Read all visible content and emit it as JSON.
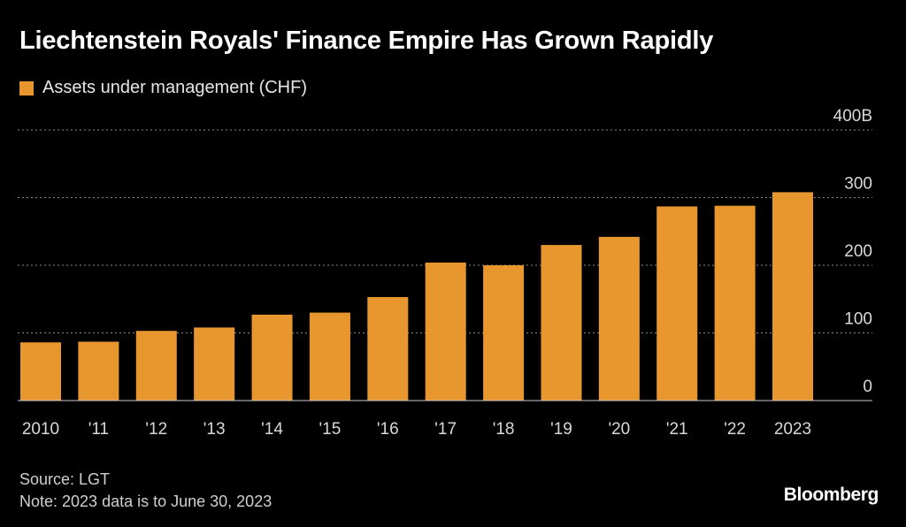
{
  "title": "Liechtenstein Royals' Finance Empire Has Grown Rapidly",
  "colors": {
    "bar": "#e8962e",
    "grid": "#8a8a8a",
    "axis": "#cccccc",
    "background": "#000000"
  },
  "chart_data": {
    "type": "bar",
    "categories": [
      "2010",
      "'11",
      "'12",
      "'13",
      "'14",
      "'15",
      "'16",
      "'17",
      "'18",
      "'19",
      "'20",
      "'21",
      "'22",
      "2023"
    ],
    "series": [
      {
        "name": "Assets under management (CHF)",
        "values": [
          86,
          87,
          103,
          108,
          127,
          130,
          153,
          204,
          200,
          230,
          242,
          287,
          288,
          308
        ]
      }
    ],
    "y_ticks": [
      {
        "value": 400,
        "label": "400B"
      },
      {
        "value": 300,
        "label": "300"
      },
      {
        "value": 200,
        "label": "200"
      },
      {
        "value": 100,
        "label": "100"
      },
      {
        "value": 0,
        "label": "0"
      }
    ],
    "ylim": [
      0,
      400
    ],
    "grid": true,
    "legend_position": "top-left",
    "y_axis_side": "right"
  },
  "footer": {
    "source": "Source: LGT",
    "note": "Note: 2023 data is to June 30, 2023"
  },
  "brand": "Bloomberg"
}
